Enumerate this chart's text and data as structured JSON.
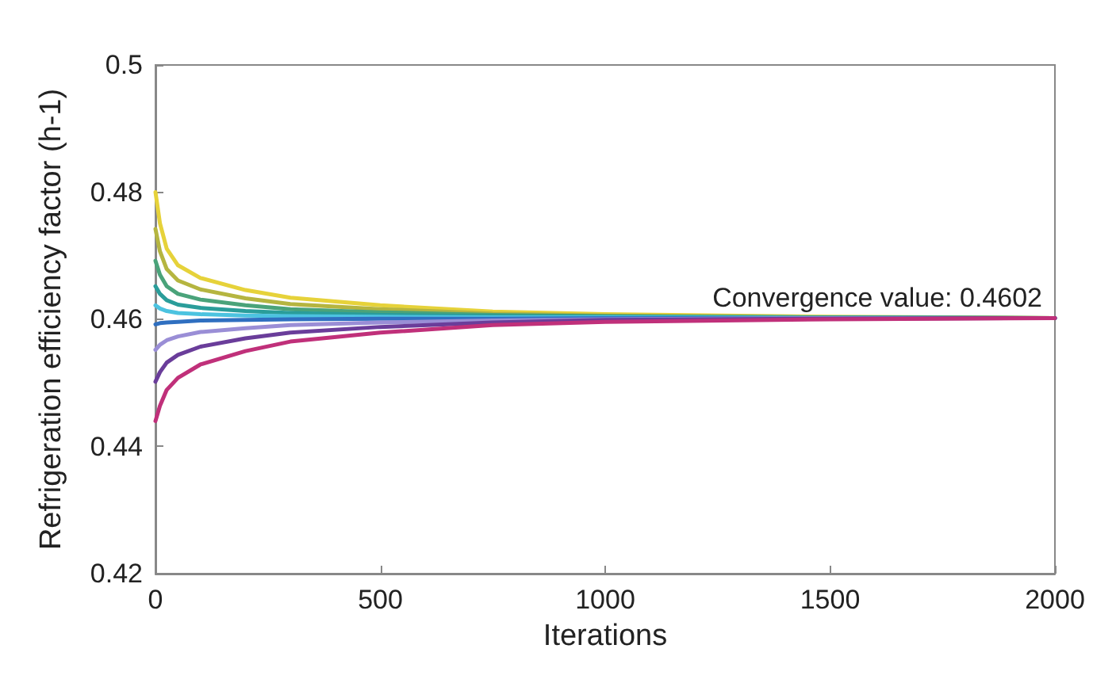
{
  "chart_data": {
    "type": "line",
    "xlabel": "Iterations",
    "ylabel": "Refrigeration efficiency factor (h-1)",
    "x": [
      0,
      10,
      25,
      50,
      100,
      200,
      300,
      500,
      750,
      1000,
      1500,
      2000
    ],
    "xlim": [
      0,
      2000
    ],
    "xticks": [
      0,
      500,
      1000,
      1500,
      2000
    ],
    "ylim": [
      0.42,
      0.5
    ],
    "yticks": [
      0.42,
      0.44,
      0.46,
      0.48,
      0.5
    ],
    "grid": false,
    "marker": "none",
    "line_style": "solid",
    "annotations": [
      {
        "text": "Convergence value: 0.4602",
        "x": 2000,
        "y": 0.4602
      }
    ],
    "series": [
      {
        "color": "#e6d23a",
        "values": [
          0.48,
          0.4751,
          0.4711,
          0.4685,
          0.4665,
          0.4646,
          0.4634,
          0.4622,
          0.4612,
          0.4608,
          0.4604,
          0.4602
        ]
      },
      {
        "color": "#b5b540",
        "values": [
          0.4742,
          0.4707,
          0.4679,
          0.4661,
          0.4647,
          0.4633,
          0.4624,
          0.4616,
          0.4609,
          0.4606,
          0.4603,
          0.4602
        ]
      },
      {
        "color": "#4aa37a",
        "values": [
          0.4692,
          0.467,
          0.4652,
          0.464,
          0.4631,
          0.4622,
          0.4616,
          0.4611,
          0.4607,
          0.4605,
          0.4603,
          0.4602
        ]
      },
      {
        "color": "#2a9d9a",
        "values": [
          0.4652,
          0.464,
          0.463,
          0.4623,
          0.4618,
          0.4613,
          0.461,
          0.4607,
          0.4605,
          0.4604,
          0.4603,
          0.4602
        ]
      },
      {
        "color": "#4cc3e0",
        "values": [
          0.4622,
          0.4617,
          0.4613,
          0.461,
          0.4608,
          0.4606,
          0.4605,
          0.4604,
          0.4603,
          0.4603,
          0.4602,
          0.4602
        ]
      },
      {
        "color": "#2f6fc0",
        "values": [
          0.4592,
          0.4594,
          0.4595,
          0.4596,
          0.4598,
          0.4599,
          0.46,
          0.4601,
          0.4601,
          0.4602,
          0.4602,
          0.4602
        ]
      },
      {
        "color": "#9a8ed6",
        "values": [
          0.4552,
          0.456,
          0.4567,
          0.4573,
          0.458,
          0.4586,
          0.4591,
          0.4595,
          0.4598,
          0.46,
          0.4602,
          0.4602
        ]
      },
      {
        "color": "#6a3d9a",
        "values": [
          0.4502,
          0.4517,
          0.4532,
          0.4544,
          0.4557,
          0.457,
          0.4579,
          0.4588,
          0.4595,
          0.4599,
          0.4601,
          0.4602
        ]
      },
      {
        "color": "#c0307a",
        "values": [
          0.444,
          0.4464,
          0.4489,
          0.4508,
          0.4529,
          0.455,
          0.4565,
          0.4579,
          0.4591,
          0.4596,
          0.46,
          0.4602
        ]
      }
    ]
  }
}
